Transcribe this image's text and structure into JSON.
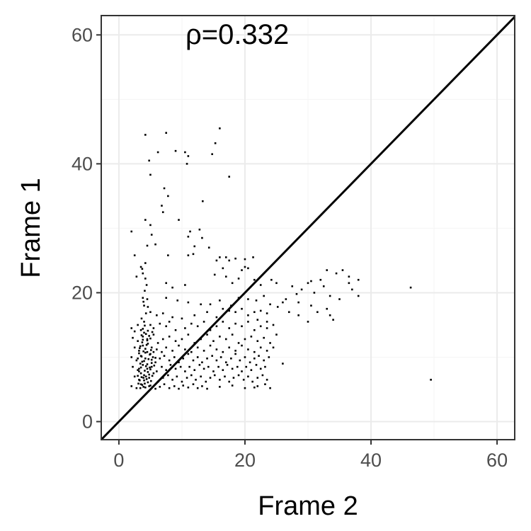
{
  "chart_data": {
    "type": "scatter",
    "title": "",
    "xlabel": "Frame 2",
    "ylabel": "Frame 1",
    "xlim": [
      -2.8,
      62.8
    ],
    "ylim": [
      -2.8,
      63.0
    ],
    "xticks": [
      "0",
      "20",
      "40",
      "60"
    ],
    "yticks": [
      "0",
      "20",
      "40",
      "60"
    ],
    "grid": true,
    "annotation": "ρ=0.332",
    "reference_line": {
      "type": "identity",
      "slope": 1,
      "intercept": 0
    },
    "colors": {
      "points": "#000000",
      "line": "#000000",
      "grid_major": "#ebebeb",
      "grid_minor": "#f5f5f5",
      "panel_border": "#333333"
    },
    "points": [
      [
        4.2,
        44.5
      ],
      [
        7.5,
        44.8
      ],
      [
        16.0,
        45.5
      ],
      [
        15.3,
        43.2
      ],
      [
        14.8,
        41.5
      ],
      [
        6.2,
        41.8
      ],
      [
        9.0,
        42.0
      ],
      [
        10.5,
        41.8
      ],
      [
        11.0,
        41.2
      ],
      [
        10.8,
        40.0
      ],
      [
        4.8,
        40.5
      ],
      [
        5.0,
        38.3
      ],
      [
        17.5,
        38.0
      ],
      [
        7.2,
        36.2
      ],
      [
        7.8,
        35.0
      ],
      [
        6.8,
        33.5
      ],
      [
        13.3,
        34.2
      ],
      [
        7.0,
        32.5
      ],
      [
        9.5,
        31.3
      ],
      [
        4.2,
        31.3
      ],
      [
        5.0,
        30.5
      ],
      [
        2.0,
        29.5
      ],
      [
        5.2,
        29.0
      ],
      [
        11.3,
        29.5
      ],
      [
        11.0,
        28.7
      ],
      [
        12.8,
        29.8
      ],
      [
        13.2,
        28.5
      ],
      [
        5.8,
        27.5
      ],
      [
        12.0,
        27.2
      ],
      [
        14.3,
        27.0
      ],
      [
        2.5,
        25.8
      ],
      [
        7.8,
        25.8
      ],
      [
        11.0,
        25.8
      ],
      [
        11.8,
        26.0
      ],
      [
        15.5,
        25.0
      ],
      [
        16.0,
        25.5
      ],
      [
        17.0,
        25.5
      ],
      [
        17.5,
        25.0
      ],
      [
        18.5,
        25.3
      ],
      [
        20.0,
        25.2
      ],
      [
        21.3,
        25.5
      ],
      [
        3.5,
        24.0
      ],
      [
        3.8,
        23.0
      ],
      [
        2.8,
        22.5
      ],
      [
        4.2,
        22.2
      ],
      [
        7.5,
        21.5
      ],
      [
        8.5,
        20.8
      ],
      [
        10.5,
        21.2
      ],
      [
        15.2,
        22.8
      ],
      [
        16.5,
        23.8
      ],
      [
        17.0,
        22.5
      ],
      [
        18.0,
        21.5
      ],
      [
        19.5,
        23.5
      ],
      [
        20.0,
        24.0
      ],
      [
        20.5,
        23.8
      ],
      [
        19.0,
        22.2
      ],
      [
        21.5,
        22.0
      ],
      [
        22.5,
        21.2
      ],
      [
        24.2,
        22.0
      ],
      [
        25.0,
        21.5
      ],
      [
        27.5,
        21.0
      ],
      [
        30.0,
        21.5
      ],
      [
        30.5,
        21.8
      ],
      [
        32.0,
        22.0
      ],
      [
        32.5,
        21.0
      ],
      [
        33.0,
        23.5
      ],
      [
        34.5,
        23.0
      ],
      [
        35.5,
        23.5
      ],
      [
        36.5,
        22.5
      ],
      [
        38.0,
        22.0
      ],
      [
        36.5,
        21.5
      ],
      [
        37.0,
        20.5
      ],
      [
        28.2,
        19.8
      ],
      [
        29.0,
        20.5
      ],
      [
        31.0,
        20.0
      ],
      [
        33.5,
        19.5
      ],
      [
        35.0,
        19.0
      ],
      [
        38.0,
        19.5
      ],
      [
        46.3,
        20.8
      ],
      [
        28.5,
        18.5
      ],
      [
        27.0,
        17.0
      ],
      [
        28.5,
        16.5
      ],
      [
        30.5,
        18.0
      ],
      [
        31.5,
        17.0
      ],
      [
        33.5,
        16.5
      ],
      [
        30.0,
        15.5
      ],
      [
        33.0,
        17.5
      ],
      [
        34.0,
        15.8
      ],
      [
        26.0,
        18.5
      ],
      [
        26.5,
        19.0
      ],
      [
        25.2,
        17.8
      ],
      [
        3.8,
        19.2
      ],
      [
        4.5,
        19.0
      ],
      [
        7.5,
        19.2
      ],
      [
        9.3,
        18.8
      ],
      [
        11.0,
        18.5
      ],
      [
        13.0,
        18.2
      ],
      [
        4.0,
        18.0
      ],
      [
        5.0,
        17.0
      ],
      [
        6.0,
        16.5
      ],
      [
        7.0,
        16.8
      ],
      [
        8.5,
        16.2
      ],
      [
        10.0,
        16.0
      ],
      [
        12.0,
        16.5
      ],
      [
        14.0,
        17.0
      ],
      [
        15.5,
        16.2
      ],
      [
        16.5,
        17.5
      ],
      [
        17.5,
        17.2
      ],
      [
        18.5,
        17.0
      ],
      [
        19.5,
        17.5
      ],
      [
        20.5,
        16.5
      ],
      [
        21.5,
        17.0
      ],
      [
        22.5,
        17.2
      ],
      [
        23.5,
        16.8
      ],
      [
        14.5,
        18.2
      ],
      [
        16.0,
        18.8
      ],
      [
        17.8,
        18.0
      ],
      [
        19.0,
        19.2
      ],
      [
        20.5,
        19.0
      ],
      [
        21.8,
        18.8
      ],
      [
        23.0,
        19.5
      ],
      [
        24.0,
        18.2
      ],
      [
        22.0,
        15.8
      ],
      [
        23.5,
        15.5
      ],
      [
        2.0,
        14.5
      ],
      [
        2.5,
        14.0
      ],
      [
        3.0,
        15.0
      ],
      [
        3.5,
        14.2
      ],
      [
        4.0,
        13.8
      ],
      [
        5.0,
        15.0
      ],
      [
        5.5,
        14.5
      ],
      [
        6.5,
        15.2
      ],
      [
        7.5,
        14.8
      ],
      [
        8.0,
        15.5
      ],
      [
        9.0,
        14.2
      ],
      [
        10.5,
        14.5
      ],
      [
        11.5,
        15.2
      ],
      [
        12.5,
        14.8
      ],
      [
        13.5,
        15.5
      ],
      [
        14.5,
        14.2
      ],
      [
        15.5,
        14.8
      ],
      [
        16.5,
        15.5
      ],
      [
        17.5,
        14.5
      ],
      [
        18.5,
        15.2
      ],
      [
        19.5,
        14.8
      ],
      [
        20.5,
        15.5
      ],
      [
        21.5,
        14.2
      ],
      [
        22.5,
        14.8
      ],
      [
        23.5,
        14.5
      ],
      [
        24.5,
        15.0
      ],
      [
        2.2,
        13.0
      ],
      [
        3.0,
        12.5
      ],
      [
        3.8,
        13.2
      ],
      [
        4.5,
        12.8
      ],
      [
        5.5,
        13.5
      ],
      [
        6.2,
        12.2
      ],
      [
        7.0,
        12.8
      ],
      [
        8.0,
        13.2
      ],
      [
        9.0,
        12.5
      ],
      [
        10.0,
        12.8
      ],
      [
        11.0,
        13.5
      ],
      [
        12.0,
        12.2
      ],
      [
        13.0,
        12.8
      ],
      [
        14.0,
        13.5
      ],
      [
        15.0,
        12.5
      ],
      [
        16.0,
        13.2
      ],
      [
        17.0,
        12.8
      ],
      [
        18.0,
        13.5
      ],
      [
        19.0,
        12.2
      ],
      [
        20.0,
        12.8
      ],
      [
        21.0,
        13.2
      ],
      [
        22.0,
        12.5
      ],
      [
        23.0,
        13.0
      ],
      [
        24.0,
        12.2
      ],
      [
        25.0,
        13.5
      ],
      [
        2.5,
        11.5
      ],
      [
        3.2,
        11.0
      ],
      [
        3.8,
        11.8
      ],
      [
        4.5,
        10.8
      ],
      [
        5.2,
        11.5
      ],
      [
        6.0,
        11.2
      ],
      [
        6.8,
        10.8
      ],
      [
        7.5,
        11.5
      ],
      [
        8.5,
        11.0
      ],
      [
        9.5,
        11.8
      ],
      [
        10.5,
        11.2
      ],
      [
        11.5,
        10.8
      ],
      [
        12.5,
        11.5
      ],
      [
        13.5,
        11.0
      ],
      [
        14.5,
        11.8
      ],
      [
        15.5,
        11.2
      ],
      [
        16.5,
        10.8
      ],
      [
        17.5,
        11.5
      ],
      [
        18.5,
        11.0
      ],
      [
        19.5,
        11.8
      ],
      [
        20.5,
        11.2
      ],
      [
        21.5,
        10.8
      ],
      [
        22.5,
        11.5
      ],
      [
        23.5,
        11.0
      ],
      [
        24.5,
        11.5
      ],
      [
        2.0,
        10.0
      ],
      [
        2.8,
        9.5
      ],
      [
        3.5,
        10.2
      ],
      [
        4.2,
        9.8
      ],
      [
        5.0,
        10.5
      ],
      [
        5.8,
        9.2
      ],
      [
        6.5,
        9.8
      ],
      [
        7.2,
        10.2
      ],
      [
        8.0,
        9.5
      ],
      [
        8.8,
        10.0
      ],
      [
        9.5,
        9.2
      ],
      [
        10.2,
        9.8
      ],
      [
        11.0,
        10.5
      ],
      [
        11.8,
        9.5
      ],
      [
        12.5,
        10.0
      ],
      [
        13.2,
        9.2
      ],
      [
        14.0,
        9.8
      ],
      [
        14.8,
        10.2
      ],
      [
        15.5,
        9.5
      ],
      [
        16.2,
        10.0
      ],
      [
        17.0,
        9.2
      ],
      [
        17.8,
        9.8
      ],
      [
        18.5,
        10.5
      ],
      [
        19.2,
        9.5
      ],
      [
        20.0,
        10.0
      ],
      [
        20.8,
        9.2
      ],
      [
        21.5,
        9.8
      ],
      [
        22.2,
        10.2
      ],
      [
        23.0,
        9.5
      ],
      [
        23.8,
        10.0
      ],
      [
        26.0,
        9.0
      ],
      [
        2.2,
        8.5
      ],
      [
        3.0,
        8.0
      ],
      [
        3.8,
        8.8
      ],
      [
        4.5,
        8.2
      ],
      [
        5.2,
        8.5
      ],
      [
        6.0,
        7.8
      ],
      [
        6.8,
        8.5
      ],
      [
        7.5,
        8.0
      ],
      [
        8.2,
        8.8
      ],
      [
        9.0,
        8.2
      ],
      [
        9.8,
        8.5
      ],
      [
        10.5,
        7.8
      ],
      [
        11.2,
        8.5
      ],
      [
        12.0,
        8.0
      ],
      [
        12.8,
        8.8
      ],
      [
        13.5,
        8.2
      ],
      [
        14.2,
        8.5
      ],
      [
        15.0,
        7.8
      ],
      [
        15.8,
        8.5
      ],
      [
        16.5,
        8.0
      ],
      [
        17.2,
        8.8
      ],
      [
        18.0,
        8.2
      ],
      [
        18.8,
        8.5
      ],
      [
        19.5,
        7.8
      ],
      [
        20.2,
        8.5
      ],
      [
        21.0,
        8.0
      ],
      [
        21.8,
        8.8
      ],
      [
        22.5,
        8.2
      ],
      [
        23.2,
        8.5
      ],
      [
        2.5,
        7.0
      ],
      [
        3.2,
        6.5
      ],
      [
        4.0,
        7.2
      ],
      [
        4.8,
        6.8
      ],
      [
        5.5,
        7.5
      ],
      [
        6.2,
        6.2
      ],
      [
        7.0,
        6.8
      ],
      [
        7.8,
        7.2
      ],
      [
        8.5,
        6.5
      ],
      [
        9.2,
        7.0
      ],
      [
        10.0,
        6.2
      ],
      [
        10.8,
        6.8
      ],
      [
        11.5,
        7.2
      ],
      [
        12.2,
        6.5
      ],
      [
        13.0,
        7.0
      ],
      [
        13.8,
        6.2
      ],
      [
        14.5,
        6.8
      ],
      [
        15.2,
        7.2
      ],
      [
        16.0,
        6.5
      ],
      [
        16.8,
        7.0
      ],
      [
        17.5,
        6.2
      ],
      [
        18.2,
        6.8
      ],
      [
        19.0,
        7.2
      ],
      [
        19.8,
        6.5
      ],
      [
        20.5,
        7.0
      ],
      [
        21.2,
        6.2
      ],
      [
        22.0,
        6.8
      ],
      [
        22.8,
        7.2
      ],
      [
        23.5,
        6.5
      ],
      [
        49.5,
        6.5
      ],
      [
        2.0,
        5.5
      ],
      [
        2.8,
        5.2
      ],
      [
        3.5,
        5.8
      ],
      [
        4.2,
        5.3
      ],
      [
        5.0,
        5.6
      ],
      [
        5.8,
        5.1
      ],
      [
        6.5,
        5.4
      ],
      [
        7.2,
        5.8
      ],
      [
        8.0,
        5.2
      ],
      [
        8.8,
        5.5
      ],
      [
        9.5,
        5.1
      ],
      [
        10.2,
        5.6
      ],
      [
        11.0,
        5.3
      ],
      [
        11.8,
        5.8
      ],
      [
        12.5,
        5.2
      ],
      [
        13.2,
        5.5
      ],
      [
        14.0,
        5.1
      ],
      [
        16.0,
        5.4
      ],
      [
        18.0,
        5.6
      ],
      [
        20.0,
        5.2
      ],
      [
        22.0,
        5.5
      ],
      [
        24.0,
        5.2
      ],
      [
        23.2,
        5.8
      ],
      [
        21.5,
        5.3
      ],
      [
        3.2,
        8.2
      ],
      [
        3.4,
        9.0
      ],
      [
        3.6,
        10.1
      ],
      [
        3.3,
        11.4
      ],
      [
        3.7,
        12.3
      ],
      [
        3.5,
        7.5
      ],
      [
        3.9,
        6.8
      ],
      [
        4.1,
        7.9
      ],
      [
        4.3,
        8.6
      ],
      [
        4.0,
        9.4
      ],
      [
        4.2,
        10.7
      ],
      [
        4.4,
        11.9
      ],
      [
        3.8,
        12.7
      ],
      [
        4.6,
        6.1
      ],
      [
        4.8,
        7.3
      ],
      [
        4.5,
        8.9
      ],
      [
        4.7,
        9.7
      ],
      [
        4.9,
        10.4
      ],
      [
        5.1,
        11.1
      ],
      [
        4.6,
        12.1
      ],
      [
        3.1,
        5.9
      ],
      [
        3.3,
        6.4
      ],
      [
        3.6,
        6.9
      ],
      [
        3.9,
        5.4
      ],
      [
        4.1,
        5.9
      ],
      [
        4.4,
        6.6
      ],
      [
        4.8,
        5.5
      ],
      [
        5.1,
        6.3
      ],
      [
        5.3,
        7.1
      ],
      [
        5.0,
        8.1
      ],
      [
        5.2,
        9.1
      ],
      [
        5.4,
        10.0
      ],
      [
        3.0,
        9.8
      ],
      [
        3.2,
        10.6
      ],
      [
        3.4,
        11.7
      ],
      [
        3.6,
        13.4
      ],
      [
        3.8,
        14.4
      ],
      [
        4.1,
        14.9
      ],
      [
        4.3,
        13.6
      ],
      [
        4.6,
        14.1
      ],
      [
        3.0,
        7.1
      ],
      [
        3.2,
        7.8
      ],
      [
        3.5,
        8.4
      ],
      [
        3.7,
        9.3
      ],
      [
        3.9,
        10.9
      ],
      [
        4.2,
        11.3
      ],
      [
        4.5,
        12.6
      ],
      [
        4.8,
        13.3
      ],
      [
        5.0,
        12.9
      ],
      [
        5.3,
        13.9
      ],
      [
        3.4,
        5.2
      ],
      [
        3.7,
        5.7
      ],
      [
        4.0,
        6.4
      ],
      [
        4.3,
        7.0
      ],
      [
        4.6,
        7.7
      ],
      [
        4.9,
        8.4
      ],
      [
        5.2,
        9.6
      ],
      [
        5.5,
        10.8
      ],
      [
        5.6,
        8.7
      ],
      [
        5.8,
        9.9
      ],
      [
        4.0,
        15.5
      ],
      [
        4.3,
        16.8
      ],
      [
        4.6,
        17.8
      ],
      [
        3.6,
        16.0
      ],
      [
        3.9,
        18.6
      ],
      [
        4.1,
        20.3
      ],
      [
        4.4,
        21.2
      ],
      [
        3.7,
        23.7
      ],
      [
        4.2,
        24.6
      ],
      [
        4.5,
        27.3
      ]
    ]
  }
}
